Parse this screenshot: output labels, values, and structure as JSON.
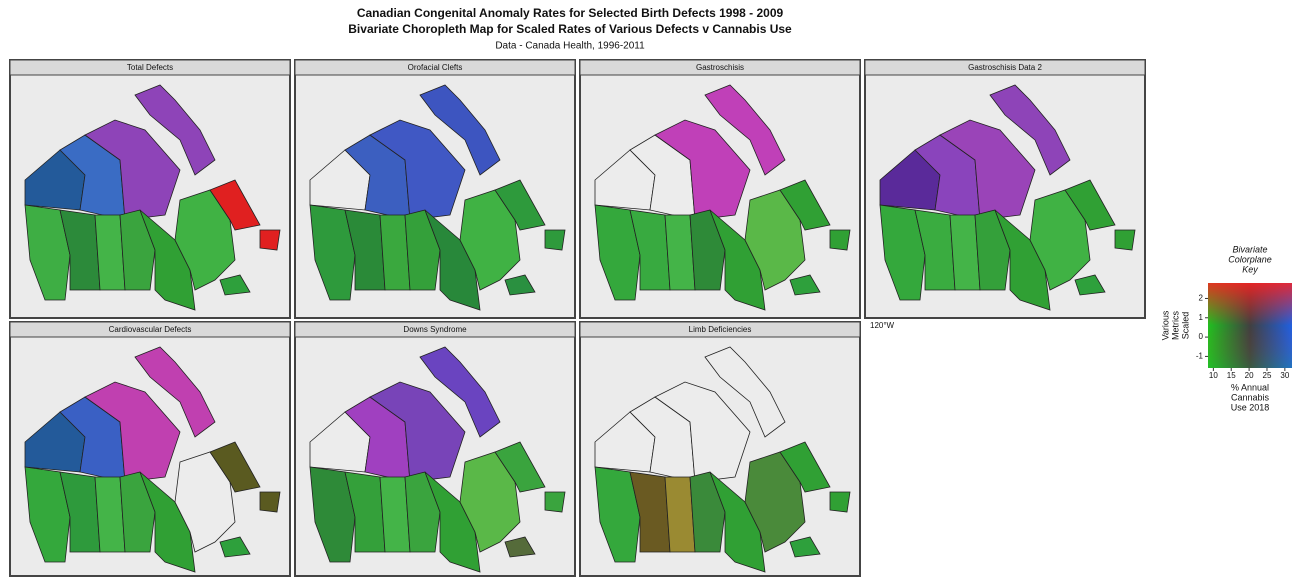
{
  "title": [
    "Canadian Congenital Anomaly Rates for Selected Birth Defects 1998 - 2009",
    "Bivariate Choropleth Map for Scaled Rates of Various Defects v Cannabis Use"
  ],
  "subtitle": "Data - Canada Health, 1996-2011",
  "panels": [
    {
      "title": "Total Defects",
      "fills": [
        "#235a9a",
        "#3a6cc4",
        "#8e44b8",
        "#8e44b8",
        "#3eae44",
        "#2c8a3a",
        "#44b448",
        "#3aa43e",
        "#30a034",
        "#40b244",
        "#e02020",
        "#e02020",
        "#2ea03c"
      ]
    },
    {
      "title": "Orofacial Clefts",
      "fills": [
        "#ececec",
        "#3c5fc0",
        "#4058c4",
        "#3d55c0",
        "#2e9a3c",
        "#2a8a38",
        "#3aa83e",
        "#34a03a",
        "#28883a",
        "#40b244",
        "#2e9a3c",
        "#2e9a3c",
        "#2a9040"
      ]
    },
    {
      "title": "Gastroschisis",
      "fills": [
        "#ececec",
        "#ececec",
        "#c040b8",
        "#c040b8",
        "#34a83c",
        "#38aa40",
        "#44b448",
        "#2e8a38",
        "#30a034",
        "#5ab848",
        "#30a034",
        "#30a034",
        "#2ea03c"
      ]
    },
    {
      "title": "Gastroschisis Data 2",
      "fills": [
        "#5a2a9a",
        "#8a44bc",
        "#9a44b8",
        "#8e44b8",
        "#34a83c",
        "#3aac40",
        "#44b448",
        "#34a03a",
        "#30a034",
        "#40b244",
        "#30a034",
        "#30a034",
        "#2ea03c"
      ]
    },
    {
      "title": "Cardiovascular Defects",
      "fills": [
        "#235a9a",
        "#3a60c4",
        "#c040b0",
        "#c040b0",
        "#34a83c",
        "#2e9a3c",
        "#44b448",
        "#3aa43e",
        "#30a034",
        "#ececec",
        "#5a5a20",
        "#5a5a20",
        "#2ea03c"
      ]
    },
    {
      "title": "Downs Syndrome",
      "fills": [
        "#ececec",
        "#a040c0",
        "#7844b8",
        "#6a44c0",
        "#2e8a38",
        "#34a03a",
        "#44b448",
        "#3aa43e",
        "#30a034",
        "#5ab848",
        "#3aa43e",
        "#3aa43e",
        "#556b3a"
      ]
    },
    {
      "title": "Limb Deficiencies",
      "fills": [
        "#ececec",
        "#ececec",
        "#ececec",
        "#ececec",
        "#34a83c",
        "#6a5a22",
        "#9a8a32",
        "#3a8a3a",
        "#30a034",
        "#4a8a3a",
        "#30a034",
        "#30a034",
        "#2ea03c"
      ]
    }
  ],
  "axis_note": "120°W",
  "legend": {
    "title": [
      "Bivariate",
      "Colorplane",
      "Key"
    ],
    "y_label": [
      "Various",
      "Metrics",
      "Scaled"
    ],
    "x_label": [
      "% Annual",
      "Cannabis",
      "Use 2018"
    ],
    "xlim": [
      8.5,
      32
    ],
    "xticks": [
      10,
      15,
      20,
      25,
      30
    ],
    "ylim": [
      -1.6,
      2.8
    ],
    "yticks": [
      2,
      1,
      0,
      -1
    ]
  }
}
